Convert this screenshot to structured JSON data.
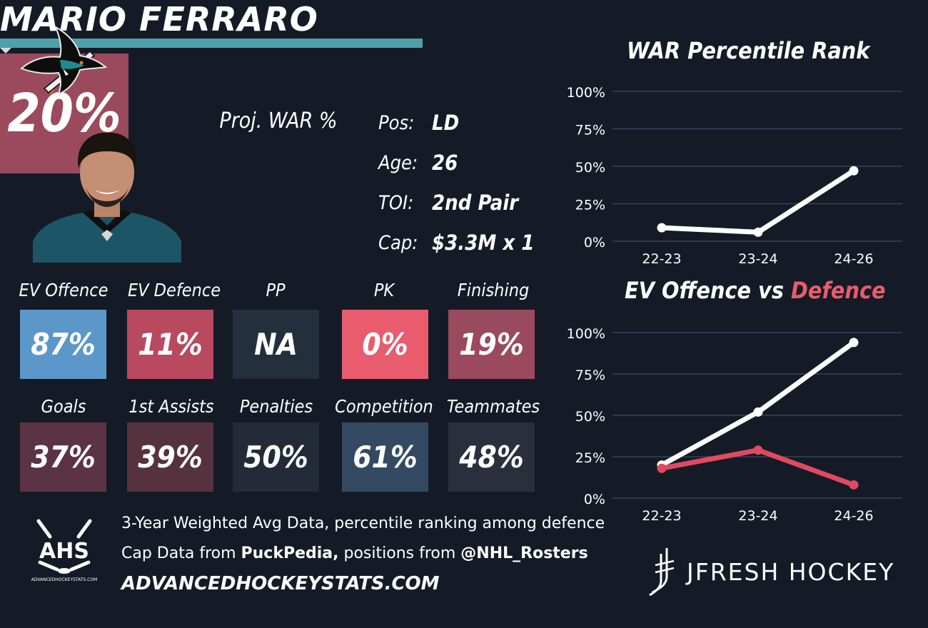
{
  "player": {
    "name": "MARIO FERRARO",
    "proj_war_label": "Proj. WAR %",
    "proj_war_value": "20%",
    "info": [
      {
        "label": "Pos:",
        "value": "LD"
      },
      {
        "label": "Age:",
        "value": "26"
      },
      {
        "label": "TOI:",
        "value": "2nd Pair"
      },
      {
        "label": "Cap:",
        "value": "$3.3M x 1"
      }
    ]
  },
  "tiles_row1": [
    {
      "label": "EV Offence",
      "value": "87%",
      "color": "#5b97c8"
    },
    {
      "label": "EV Defence",
      "value": "11%",
      "color": "#b8495f"
    },
    {
      "label": "PP",
      "value": "NA",
      "color": "#232f3d"
    },
    {
      "label": "PK",
      "value": "0%",
      "color": "#e85c6e"
    },
    {
      "label": "Finishing",
      "value": "19%",
      "color": "#9a4a5e"
    }
  ],
  "tiles_row2": [
    {
      "label": "Goals",
      "value": "37%",
      "color": "#5c3344"
    },
    {
      "label": "1st Assists",
      "value": "39%",
      "color": "#56323f"
    },
    {
      "label": "Penalties",
      "value": "50%",
      "color": "#232b38"
    },
    {
      "label": "Competition",
      "value": "61%",
      "color": "#344a62"
    },
    {
      "label": "Teammates",
      "value": "48%",
      "color": "#2a2f3b"
    }
  ],
  "footer": {
    "line1": "3-Year Weighted Avg Data, percentile ranking among defence",
    "line2_prefix": "Cap Data from ",
    "line2_source1": "PuckPedia,",
    "line2_middle": " positions from ",
    "line2_source2": "@NHL_Rosters",
    "site": "ADVANCEDHOCKEYSTATS.COM",
    "ahs_logo_text": "AHS",
    "ahs_logo_small": "ADVANCEDHOCKEYSTATS.COM",
    "brand": "JFRESH HOCKEY"
  },
  "icons": {
    "team_logo": "shark-logo-icon",
    "headshot": "player-headshot-icon",
    "ahs_logo": "ahs-logo-icon",
    "jfresh_logo": "hockey-stick-logo-icon"
  },
  "chart_data": [
    {
      "type": "line",
      "title": "WAR Percentile Rank",
      "categories": [
        "22-23",
        "23-24",
        "24-26"
      ],
      "series": [
        {
          "values": [
            9,
            6,
            47
          ],
          "color": "#ffffff"
        }
      ],
      "ylim": [
        0,
        100
      ],
      "yticks": [
        "0%",
        "25%",
        "50%",
        "75%",
        "100%"
      ],
      "grid": true
    },
    {
      "type": "line",
      "title_part1": "EV Offence vs ",
      "title_part2": "Defence",
      "title_part2_color": "#e85c6e",
      "categories": [
        "22-23",
        "23-24",
        "24-26"
      ],
      "series": [
        {
          "values": [
            20,
            52,
            94
          ],
          "color": "#ffffff"
        },
        {
          "values": [
            18,
            29,
            8
          ],
          "color": "#e04a60"
        }
      ],
      "ylim": [
        0,
        100
      ],
      "yticks": [
        "0%",
        "25%",
        "50%",
        "75%",
        "100%"
      ],
      "grid": true
    }
  ]
}
